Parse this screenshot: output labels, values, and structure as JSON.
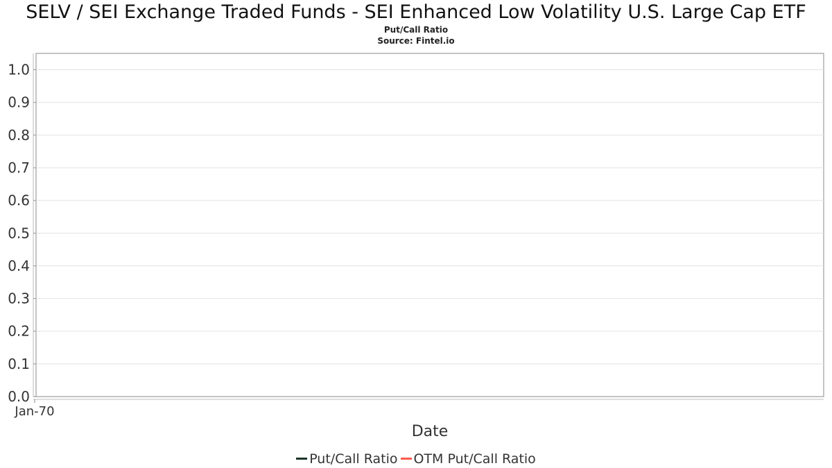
{
  "chart_data": {
    "type": "line",
    "title": "SELV / SEI Exchange Traded Funds - SEI Enhanced Low Volatility U.S. Large Cap ETF",
    "subtitle": "Put/Call Ratio",
    "source": "Source: Fintel.io",
    "xlabel": "Date",
    "ylabel": "",
    "x_tick_labels": [
      "Jan-70"
    ],
    "y_ticks": [
      0.0,
      0.1,
      0.2,
      0.3,
      0.4,
      0.5,
      0.6,
      0.7,
      0.8,
      0.9,
      1.0
    ],
    "y_tick_labels": [
      "0.0",
      "0.1",
      "0.2",
      "0.3",
      "0.4",
      "0.5",
      "0.6",
      "0.7",
      "0.8",
      "0.9",
      "1.0"
    ],
    "ylim": [
      0.0,
      1.05
    ],
    "grid": true,
    "legend_position": "bottom",
    "series": [
      {
        "name": "Put/Call Ratio",
        "color": "#1a3326",
        "values": []
      },
      {
        "name": "OTM Put/Call Ratio",
        "color": "#ff5a4a",
        "values": []
      }
    ]
  }
}
